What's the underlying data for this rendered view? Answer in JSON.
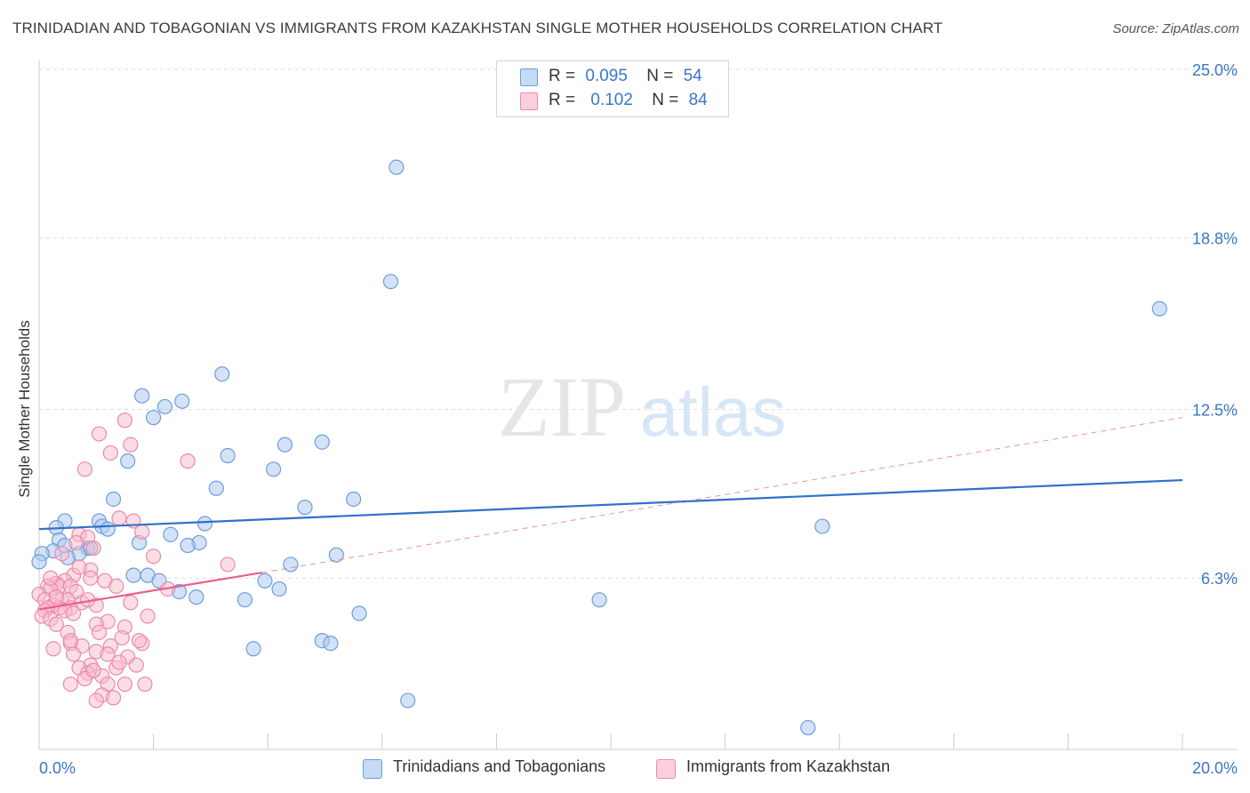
{
  "header": {
    "title": "TRINIDADIAN AND TOBAGONIAN VS IMMIGRANTS FROM KAZAKHSTAN SINGLE MOTHER HOUSEHOLDS CORRELATION CHART",
    "source": "Source: ZipAtlas.com"
  },
  "watermark": {
    "zip": "ZIP",
    "atlas": "atlas"
  },
  "legend": {
    "r_label": "R =",
    "n_label": "N =",
    "series1": {
      "r": "0.095",
      "n": "54"
    },
    "series2": {
      "r": "0.102",
      "n": "84"
    }
  },
  "bottom_legend": {
    "series1": "Trinidadians and Tobagonians",
    "series2": "Immigrants from Kazakhstan"
  },
  "colors": {
    "blue_fill": "#aecbf0",
    "blue_stroke": "#6d9ed9",
    "blue_line": "#3070c8",
    "pink_fill": "#f8bccd",
    "pink_stroke": "#ec8aaa",
    "pink_line": "#e8608a",
    "axis_text": "#3a76c7",
    "grid": "#dddddd"
  },
  "chart_data": {
    "type": "scatter",
    "title": "TRINIDADIAN AND TOBAGONIAN VS IMMIGRANTS FROM KAZAKHSTAN SINGLE MOTHER HOUSEHOLDS CORRELATION CHART",
    "xlabel": "",
    "ylabel": "Single Mother Households",
    "xlim": [
      0,
      20
    ],
    "ylim": [
      0,
      25
    ],
    "x_tick_labels": [
      "0.0%",
      "20.0%"
    ],
    "y_ticks": [
      6.3,
      12.5,
      18.8,
      25.0
    ],
    "y_tick_labels": [
      "6.3%",
      "12.5%",
      "18.8%",
      "25.0%"
    ],
    "grid": true,
    "series": [
      {
        "name": "Trinidadians and Tobagonians",
        "r": 0.095,
        "n": 54,
        "trend": {
          "x": [
            0,
            20
          ],
          "y": [
            8.1,
            9.9
          ],
          "style": "solid"
        },
        "points": [
          [
            6.25,
            21.4
          ],
          [
            6.15,
            17.2
          ],
          [
            19.6,
            16.2
          ],
          [
            3.2,
            13.8
          ],
          [
            1.8,
            13.0
          ],
          [
            2.5,
            12.8
          ],
          [
            2.2,
            12.6
          ],
          [
            2.0,
            12.2
          ],
          [
            4.95,
            11.3
          ],
          [
            4.3,
            11.2
          ],
          [
            3.3,
            10.8
          ],
          [
            1.55,
            10.6
          ],
          [
            4.1,
            10.3
          ],
          [
            3.1,
            9.6
          ],
          [
            1.3,
            9.2
          ],
          [
            5.5,
            9.2
          ],
          [
            4.65,
            8.9
          ],
          [
            0.45,
            8.4
          ],
          [
            1.05,
            8.4
          ],
          [
            2.9,
            8.3
          ],
          [
            13.7,
            8.2
          ],
          [
            1.1,
            8.2
          ],
          [
            1.2,
            8.1
          ],
          [
            0.3,
            8.15
          ],
          [
            2.3,
            7.9
          ],
          [
            0.35,
            7.7
          ],
          [
            1.75,
            7.6
          ],
          [
            2.8,
            7.6
          ],
          [
            2.6,
            7.5
          ],
          [
            0.85,
            7.4
          ],
          [
            0.25,
            7.3
          ],
          [
            0.05,
            7.2
          ],
          [
            0.7,
            7.2
          ],
          [
            0.9,
            7.4
          ],
          [
            5.2,
            7.15
          ],
          [
            0.5,
            7.05
          ],
          [
            0.0,
            6.9
          ],
          [
            4.4,
            6.8
          ],
          [
            1.65,
            6.4
          ],
          [
            1.9,
            6.4
          ],
          [
            2.1,
            6.2
          ],
          [
            3.95,
            6.2
          ],
          [
            4.2,
            5.9
          ],
          [
            2.45,
            5.8
          ],
          [
            2.75,
            5.6
          ],
          [
            3.6,
            5.5
          ],
          [
            9.8,
            5.5
          ],
          [
            5.6,
            5.0
          ],
          [
            4.95,
            4.0
          ],
          [
            5.1,
            3.9
          ],
          [
            3.75,
            3.7
          ],
          [
            6.45,
            1.8
          ],
          [
            13.45,
            0.8
          ],
          [
            0.45,
            7.5
          ]
        ]
      },
      {
        "name": "Immigrants from Kazakhstan",
        "r": 0.102,
        "n": 84,
        "trend": {
          "x": [
            0,
            3.9
          ],
          "y": [
            5.15,
            6.5
          ],
          "style": "solid",
          "dashed_extension": {
            "x": [
              3.9,
              20
            ],
            "y": [
              6.5,
              12.2
            ]
          }
        },
        "points": [
          [
            1.5,
            12.1
          ],
          [
            1.05,
            11.6
          ],
          [
            1.6,
            11.2
          ],
          [
            1.25,
            10.9
          ],
          [
            2.6,
            10.6
          ],
          [
            0.8,
            10.3
          ],
          [
            1.4,
            8.5
          ],
          [
            1.8,
            8.0
          ],
          [
            0.7,
            7.9
          ],
          [
            0.85,
            7.8
          ],
          [
            0.65,
            7.6
          ],
          [
            0.95,
            7.4
          ],
          [
            2.0,
            7.1
          ],
          [
            3.3,
            6.8
          ],
          [
            0.9,
            6.6
          ],
          [
            0.6,
            6.4
          ],
          [
            1.15,
            6.2
          ],
          [
            0.45,
            6.2
          ],
          [
            0.3,
            6.1
          ],
          [
            0.35,
            6.0
          ],
          [
            0.15,
            6.0
          ],
          [
            0.55,
            6.0
          ],
          [
            0.2,
            5.9
          ],
          [
            0.65,
            5.8
          ],
          [
            0.0,
            5.7
          ],
          [
            0.1,
            5.5
          ],
          [
            0.4,
            5.5
          ],
          [
            0.5,
            5.5
          ],
          [
            0.75,
            5.4
          ],
          [
            1.0,
            5.3
          ],
          [
            0.25,
            5.3
          ],
          [
            0.55,
            5.2
          ],
          [
            0.35,
            5.2
          ],
          [
            0.15,
            5.2
          ],
          [
            0.1,
            5.1
          ],
          [
            0.45,
            5.1
          ],
          [
            0.6,
            5.0
          ],
          [
            0.05,
            4.9
          ],
          [
            0.2,
            4.8
          ],
          [
            0.85,
            5.5
          ],
          [
            2.25,
            5.9
          ],
          [
            1.35,
            6.0
          ],
          [
            1.6,
            5.4
          ],
          [
            1.9,
            4.9
          ],
          [
            1.2,
            4.7
          ],
          [
            1.0,
            4.6
          ],
          [
            1.5,
            4.5
          ],
          [
            0.5,
            4.3
          ],
          [
            1.05,
            4.3
          ],
          [
            0.55,
            3.9
          ],
          [
            0.75,
            3.8
          ],
          [
            1.25,
            3.8
          ],
          [
            1.8,
            3.9
          ],
          [
            1.75,
            4.0
          ],
          [
            0.25,
            3.7
          ],
          [
            1.0,
            3.6
          ],
          [
            0.6,
            3.5
          ],
          [
            1.2,
            3.5
          ],
          [
            1.55,
            3.4
          ],
          [
            0.9,
            3.1
          ],
          [
            1.35,
            3.0
          ],
          [
            1.4,
            3.2
          ],
          [
            0.7,
            3.0
          ],
          [
            0.85,
            2.8
          ],
          [
            1.1,
            2.7
          ],
          [
            0.8,
            2.6
          ],
          [
            1.2,
            2.4
          ],
          [
            1.5,
            2.4
          ],
          [
            0.55,
            2.4
          ],
          [
            1.85,
            2.4
          ],
          [
            1.1,
            2.0
          ],
          [
            1.3,
            1.9
          ],
          [
            1.0,
            1.8
          ],
          [
            0.4,
            7.2
          ],
          [
            1.65,
            8.4
          ],
          [
            0.9,
            6.3
          ],
          [
            0.3,
            5.6
          ],
          [
            0.7,
            6.7
          ],
          [
            0.2,
            6.3
          ],
          [
            0.55,
            4.0
          ],
          [
            1.45,
            4.1
          ],
          [
            1.7,
            3.1
          ],
          [
            0.95,
            2.9
          ],
          [
            0.3,
            4.6
          ]
        ]
      }
    ]
  }
}
